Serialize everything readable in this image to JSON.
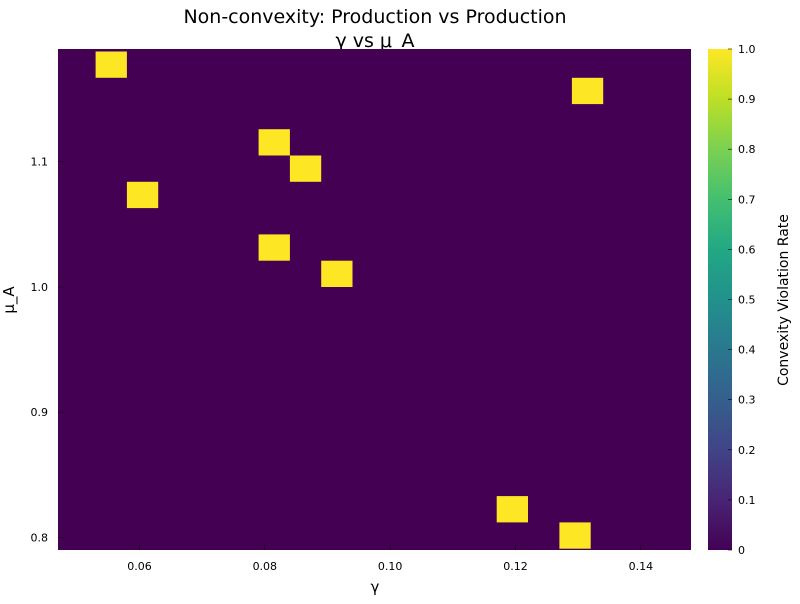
{
  "chart_data": {
    "type": "heatmap",
    "title": "Non-convexity: Production vs Production",
    "subtitle": "γ vs μ_A",
    "xlabel": "γ",
    "ylabel": "μ_A",
    "colorbar_label": "Convexity Violation Rate",
    "colormap": "viridis",
    "background_value": 0,
    "xlim": [
      0.047,
      0.148
    ],
    "ylim": [
      0.79,
      1.19
    ],
    "zlim": [
      0,
      1
    ],
    "x_ticks": [
      "0.06",
      "0.08",
      "0.10",
      "0.12",
      "0.14"
    ],
    "y_ticks": [
      "0.8",
      "0.9",
      "1.0",
      "1.1"
    ],
    "colorbar_ticks": [
      "0",
      "0.1",
      "0.2",
      "0.3",
      "0.4",
      "0.5",
      "0.6",
      "0.7",
      "0.8",
      "0.9",
      "1.0"
    ],
    "cells": [
      {
        "x": 0.0555,
        "y": 1.1775,
        "value": 1
      },
      {
        "x": 0.1315,
        "y": 1.1565,
        "value": 1
      },
      {
        "x": 0.0815,
        "y": 1.1155,
        "value": 1
      },
      {
        "x": 0.0865,
        "y": 1.0945,
        "value": 1
      },
      {
        "x": 0.0605,
        "y": 1.0735,
        "value": 1
      },
      {
        "x": 0.0815,
        "y": 1.0315,
        "value": 1
      },
      {
        "x": 0.0915,
        "y": 1.0105,
        "value": 1
      },
      {
        "x": 0.1195,
        "y": 0.8225,
        "value": 1
      },
      {
        "x": 0.1295,
        "y": 0.8015,
        "value": 1
      }
    ],
    "colors": {
      "low": "#440154",
      "high": "#fde725"
    }
  }
}
